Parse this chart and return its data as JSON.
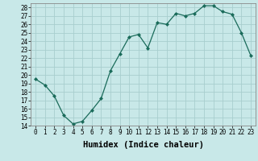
{
  "x": [
    0,
    1,
    2,
    3,
    4,
    5,
    6,
    7,
    8,
    9,
    10,
    11,
    12,
    13,
    14,
    15,
    16,
    17,
    18,
    19,
    20,
    21,
    22,
    23
  ],
  "y": [
    19.5,
    18.8,
    17.5,
    15.2,
    14.2,
    14.5,
    15.8,
    17.2,
    20.5,
    22.5,
    24.5,
    24.8,
    23.2,
    26.2,
    26.0,
    27.3,
    27.0,
    27.3,
    28.2,
    28.2,
    27.5,
    27.2,
    25.0,
    22.3
  ],
  "line_color": "#1a6b5a",
  "marker": "D",
  "marker_size": 2.0,
  "background_color": "#c8e8e8",
  "grid_color": "#a8cece",
  "xlabel": "Humidex (Indice chaleur)",
  "ylim": [
    14,
    28.5
  ],
  "xlim": [
    -0.5,
    23.5
  ],
  "yticks": [
    14,
    15,
    16,
    17,
    18,
    19,
    20,
    21,
    22,
    23,
    24,
    25,
    26,
    27,
    28
  ],
  "xticks": [
    0,
    1,
    2,
    3,
    4,
    5,
    6,
    7,
    8,
    9,
    10,
    11,
    12,
    13,
    14,
    15,
    16,
    17,
    18,
    19,
    20,
    21,
    22,
    23
  ],
  "tick_fontsize": 5.5,
  "label_fontsize": 7.5
}
